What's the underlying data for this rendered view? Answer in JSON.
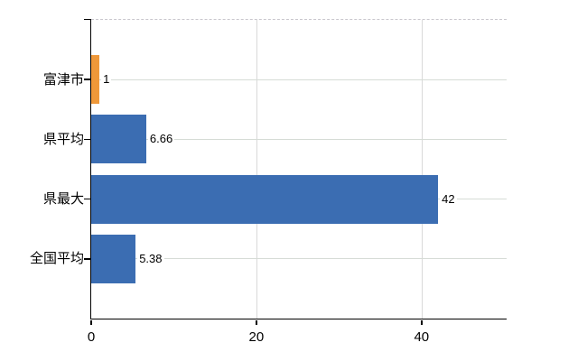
{
  "chart_data": {
    "type": "bar",
    "orientation": "horizontal",
    "title": "",
    "xlabel": "",
    "ylabel": "",
    "categories": [
      "富津市",
      "県平均",
      "県最大",
      "全国平均"
    ],
    "values": [
      1,
      6.66,
      42,
      5.38
    ],
    "value_labels": [
      "1",
      "6.66",
      "42",
      "5.38"
    ],
    "bar_colors": [
      "#ef9839",
      "#3b6db2",
      "#3b6db2",
      "#3b6db2"
    ],
    "x_ticks": [
      0,
      20,
      40
    ],
    "x_tick_labels": [
      "0",
      "20",
      "40"
    ],
    "xlim": [
      0,
      50.3
    ],
    "grid": true,
    "legend": "none",
    "axis_style": {
      "highlight_color": "#ef9839",
      "series_color": "#3b6db2",
      "h_gridline_color": "#d6dcd6",
      "v_gridline_color": "#d9d9d9",
      "top_border_style": "dashed",
      "top_border_color": "#c9c6cd",
      "axis_line_color": "#000000"
    }
  }
}
